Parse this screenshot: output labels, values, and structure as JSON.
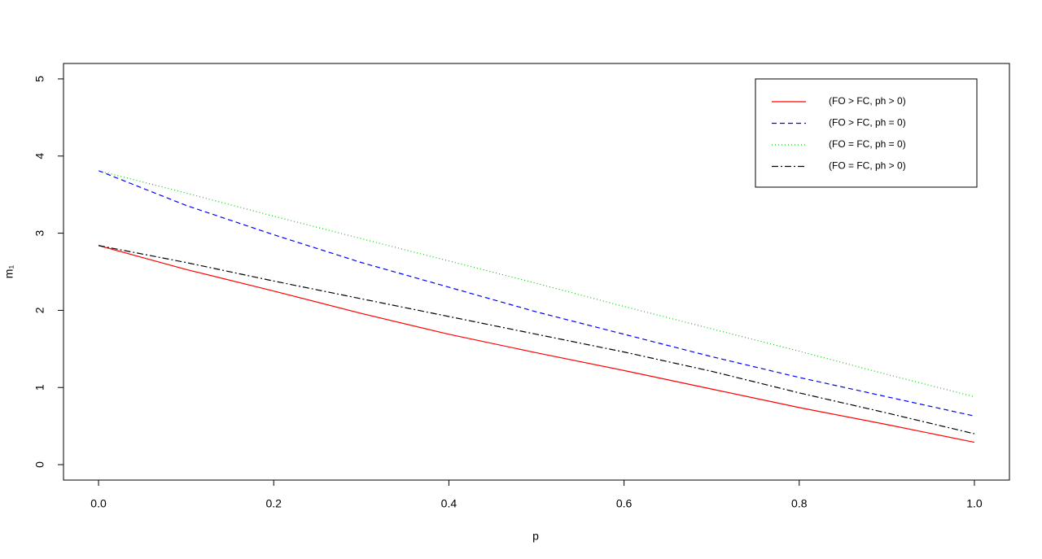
{
  "chart_data": {
    "type": "line",
    "x_label": "p",
    "y_label": "m₁",
    "x": [
      0,
      0.1,
      0.2,
      0.3,
      0.4,
      0.5,
      0.6,
      0.7,
      0.8,
      0.9,
      1
    ],
    "series": [
      {
        "name": "(FO > FC, ph > 0)",
        "color": "#ff0000",
        "dash": "solid",
        "values": [
          2.84,
          2.53,
          2.25,
          1.96,
          1.69,
          1.45,
          1.22,
          0.98,
          0.74,
          0.52,
          0.29
        ]
      },
      {
        "name": "(FO > FC, ph = 0)",
        "color": "#0000ff",
        "dash": "dashed",
        "values": [
          3.81,
          3.36,
          2.98,
          2.62,
          2.3,
          1.98,
          1.69,
          1.4,
          1.13,
          0.88,
          0.63
        ]
      },
      {
        "name": "(FO = FC, ph = 0)",
        "color": "#00cc00",
        "dash": "dotted",
        "values": [
          3.81,
          3.52,
          3.22,
          2.93,
          2.64,
          2.35,
          2.05,
          1.76,
          1.47,
          1.17,
          0.88
        ]
      },
      {
        "name": "(FO = FC, ph > 0)",
        "color": "#000000",
        "dash": "dotdash",
        "values": [
          2.84,
          2.62,
          2.38,
          2.15,
          1.92,
          1.69,
          1.46,
          1.21,
          0.93,
          0.67,
          0.4
        ]
      }
    ],
    "xlim": [
      -0.04,
      1.04
    ],
    "ylim": [
      -0.2,
      5.2
    ],
    "xticks": [
      {
        "value": 0,
        "label": "0.0"
      },
      0.2,
      0.4,
      0.6,
      0.8,
      {
        "value": 1,
        "label": "1.0"
      }
    ],
    "yticks": [
      0,
      1,
      2,
      3,
      4,
      5
    ],
    "legend": "top-right"
  }
}
